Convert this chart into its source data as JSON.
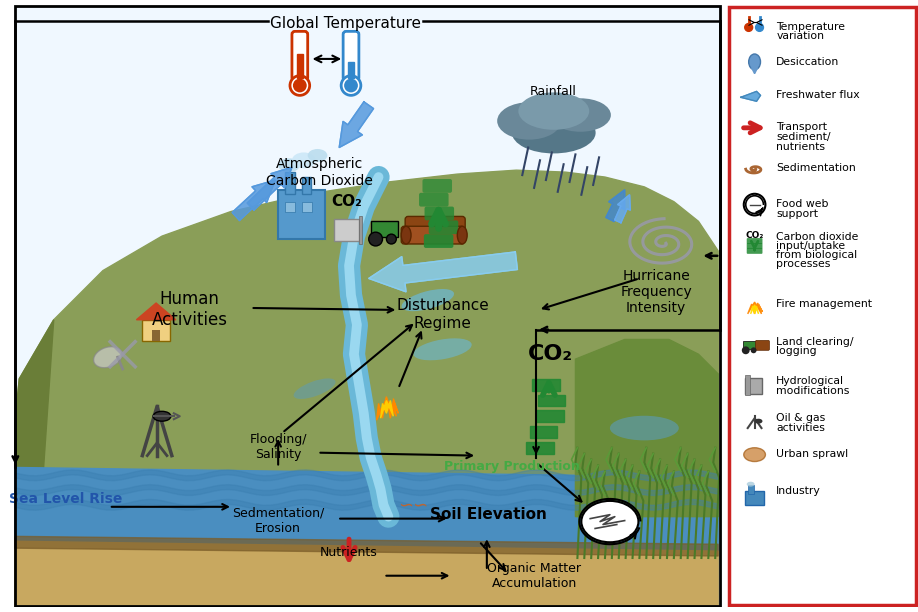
{
  "bg_color": "#ffffff",
  "legend_border_color": "#cc2222",
  "labels": {
    "global_temp": "Global Temperature",
    "atmospheric_co2": "Atmospheric\nCarbon Dioxide",
    "co2_atm": "CO₂",
    "human_activities": "Human\nActivities",
    "disturbance_regime": "Disturbance\nRegime",
    "co2_marsh": "CO₂",
    "rainfall": "Rainfall",
    "hurricane": "Hurricane\nFrequency\nIntensity",
    "sea_level": "Sea Level Rise",
    "flooding": "Flooding/\nSalinity",
    "sedimentation": "Sedmentation/\nErosion",
    "nutrients": "Nutrients",
    "soil_elevation": "Soil Elevation",
    "organic_matter": "Organic Matter\nAccumulation",
    "primary_production": "Primary Production"
  },
  "legend_items": [
    "Temperature\nvariation",
    "Desiccation",
    "Freshwater flux",
    "Transport\nsediment/\nnutrients",
    "Sedimentation",
    "Food web\nsupport",
    "Carbon dioxide\ninput/uptake\nfrom biological\nprocesses",
    "Fire management",
    "Land clearing/\nlogging",
    "Hydrological\nmodifications",
    "Oil & gas\nactivities",
    "Urban sprawl",
    "Industry"
  ],
  "colors": {
    "land": "#8a9e58",
    "land_dark": "#6a7e38",
    "land_side": "#5a6e28",
    "water": "#4a8ec0",
    "water_wave": "#3a7eb0",
    "water_deep": "#3878a8",
    "mud_layer": "#7a5c28",
    "sand": "#c8a860",
    "river": "#6ab8d8",
    "river_light": "#9ad8f0",
    "marsh": "#6a8c3a",
    "marsh_water": "#5a9cbc",
    "sky": "#f0f8ff",
    "black": "#111111",
    "blue_arrow": "#4488cc",
    "blue_arrow_hollow": "#66aadd",
    "green_co2": "#228833",
    "red_arrow": "#cc2222",
    "thermometer_red": "#cc3300",
    "thermometer_blue": "#3388cc",
    "factory_blue": "#4488bb",
    "hurricane_gray": "#9999aa",
    "cloud_dark": "#557788",
    "rain_blue": "#3399cc",
    "primary_prod_green": "#44aa44",
    "sea_text_blue": "#2255aa",
    "fire_orange": "#ff8800",
    "fire_yellow": "#ffcc00"
  }
}
